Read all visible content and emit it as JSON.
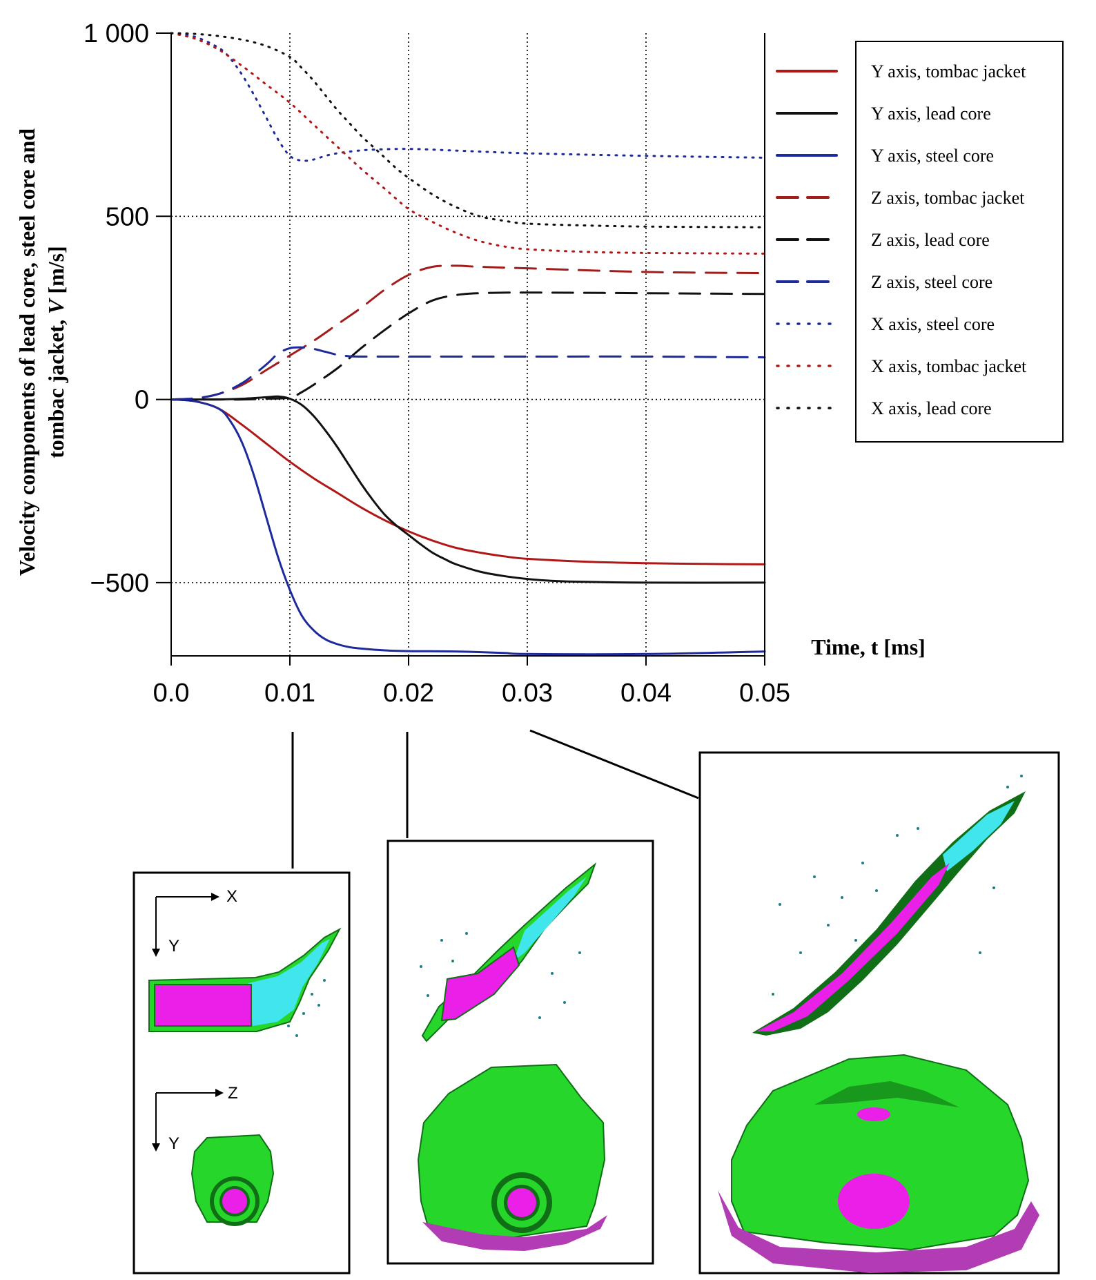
{
  "chart_data": {
    "type": "line",
    "xlabel": "Time, t [ms]",
    "ylabel_line1": "Velocity components of lead core, steel core and",
    "ylabel_line2_prefix": "tombac jacket, ",
    "ylabel_line2_var": "V",
    "ylabel_line2_unit": " [m/s]",
    "xlim": [
      0,
      0.05
    ],
    "ylim": [
      -700,
      1000
    ],
    "x_ticks": [
      0.0,
      0.01,
      0.02,
      0.03,
      0.04,
      0.05
    ],
    "x_tick_labels": [
      "0.0",
      "0.01",
      "0.02",
      "0.03",
      "0.04",
      "0.05"
    ],
    "y_ticks": [
      1000,
      500,
      0,
      -500
    ],
    "y_tick_labels": [
      "1 000",
      "500",
      "0",
      "−500"
    ],
    "series": [
      {
        "name": "Y axis, tombac jacket",
        "color": "#b01818",
        "style": "solid",
        "x": [
          0,
          0.002,
          0.004,
          0.006,
          0.008,
          0.01,
          0.012,
          0.014,
          0.016,
          0.018,
          0.02,
          0.022,
          0.024,
          0.026,
          0.028,
          0.03,
          0.035,
          0.04,
          0.045,
          0.05
        ],
        "y": [
          0,
          -5,
          -25,
          -70,
          -120,
          -170,
          -215,
          -255,
          -295,
          -330,
          -360,
          -385,
          -405,
          -418,
          -428,
          -435,
          -443,
          -447,
          -449,
          -450
        ]
      },
      {
        "name": "Y axis, lead core",
        "color": "#111111",
        "style": "solid",
        "x": [
          0,
          0.002,
          0.004,
          0.006,
          0.008,
          0.009,
          0.01,
          0.011,
          0.012,
          0.013,
          0.014,
          0.015,
          0.016,
          0.017,
          0.018,
          0.019,
          0.02,
          0.021,
          0.022,
          0.023,
          0.024,
          0.026,
          0.028,
          0.03,
          0.032,
          0.035,
          0.04,
          0.05
        ],
        "y": [
          0,
          0,
          0,
          2,
          6,
          8,
          2,
          -15,
          -45,
          -85,
          -130,
          -180,
          -230,
          -275,
          -315,
          -345,
          -370,
          -395,
          -418,
          -435,
          -450,
          -470,
          -482,
          -490,
          -495,
          -498,
          -500,
          -500
        ]
      },
      {
        "name": "Y axis, steel core",
        "color": "#1c2a9c",
        "style": "solid",
        "x": [
          0,
          0.002,
          0.004,
          0.005,
          0.006,
          0.007,
          0.008,
          0.009,
          0.01,
          0.011,
          0.012,
          0.013,
          0.014,
          0.015,
          0.016,
          0.018,
          0.02,
          0.024,
          0.028,
          0.03,
          0.04,
          0.05
        ],
        "y": [
          0,
          -5,
          -25,
          -60,
          -120,
          -210,
          -320,
          -430,
          -520,
          -590,
          -630,
          -655,
          -668,
          -676,
          -680,
          -685,
          -687,
          -688,
          -692,
          -695,
          -695,
          -688
        ]
      },
      {
        "name": "Z axis, tombac jacket",
        "color": "#a31c1c",
        "style": "dashed",
        "x": [
          0,
          0.002,
          0.004,
          0.006,
          0.008,
          0.01,
          0.012,
          0.014,
          0.016,
          0.018,
          0.02,
          0.022,
          0.024,
          0.026,
          0.03,
          0.04,
          0.05
        ],
        "y": [
          0,
          3,
          15,
          40,
          80,
          120,
          160,
          205,
          250,
          300,
          340,
          362,
          365,
          362,
          358,
          348,
          345
        ]
      },
      {
        "name": "Z axis, lead core",
        "color": "#111111",
        "style": "dashed",
        "x": [
          0,
          0.002,
          0.004,
          0.006,
          0.008,
          0.01,
          0.011,
          0.012,
          0.014,
          0.016,
          0.018,
          0.02,
          0.022,
          0.024,
          0.026,
          0.03,
          0.04,
          0.05
        ],
        "y": [
          0,
          0,
          0,
          0,
          2,
          5,
          20,
          40,
          85,
          140,
          190,
          235,
          270,
          285,
          290,
          292,
          290,
          288
        ]
      },
      {
        "name": "Z axis, steel core",
        "color": "#1c2a9c",
        "style": "dashed",
        "x": [
          0,
          0.002,
          0.004,
          0.006,
          0.008,
          0.009,
          0.01,
          0.011,
          0.012,
          0.013,
          0.014,
          0.015,
          0.016,
          0.02,
          0.03,
          0.04,
          0.05
        ],
        "y": [
          0,
          3,
          15,
          45,
          95,
          125,
          140,
          142,
          138,
          130,
          122,
          118,
          117,
          117,
          117,
          117,
          115
        ]
      },
      {
        "name": "X axis, steel core",
        "color": "#1c2a9c",
        "style": "dotted",
        "x": [
          0,
          0.002,
          0.004,
          0.005,
          0.006,
          0.007,
          0.008,
          0.009,
          0.01,
          0.011,
          0.012,
          0.013,
          0.014,
          0.016,
          0.018,
          0.02,
          0.022,
          0.025,
          0.03,
          0.04,
          0.05
        ],
        "y": [
          1000,
          990,
          960,
          930,
          885,
          830,
          770,
          710,
          665,
          652,
          655,
          665,
          672,
          680,
          683,
          684,
          682,
          678,
          672,
          665,
          660
        ]
      },
      {
        "name": "X axis, tombac jacket",
        "color": "#b01818",
        "style": "dotted",
        "x": [
          0,
          0.002,
          0.004,
          0.006,
          0.008,
          0.01,
          0.012,
          0.014,
          0.016,
          0.018,
          0.02,
          0.022,
          0.024,
          0.026,
          0.028,
          0.03,
          0.035,
          0.04,
          0.05
        ],
        "y": [
          1000,
          985,
          955,
          910,
          860,
          810,
          750,
          690,
          630,
          575,
          520,
          485,
          455,
          432,
          418,
          410,
          403,
          400,
          398
        ]
      },
      {
        "name": "X axis, lead core",
        "color": "#111111",
        "style": "dotted",
        "x": [
          0,
          0.002,
          0.004,
          0.006,
          0.008,
          0.01,
          0.011,
          0.012,
          0.013,
          0.014,
          0.015,
          0.016,
          0.017,
          0.018,
          0.019,
          0.02,
          0.022,
          0.024,
          0.026,
          0.028,
          0.03,
          0.035,
          0.04,
          0.05
        ],
        "y": [
          1000,
          998,
          992,
          982,
          965,
          935,
          905,
          870,
          830,
          790,
          755,
          720,
          690,
          660,
          630,
          605,
          560,
          525,
          500,
          488,
          480,
          475,
          472,
          470
        ]
      }
    ]
  },
  "insets": [
    {
      "time_ms": 0.01,
      "axis_top_h": "X",
      "axis_top_v": "Y",
      "axis_bottom_h": "Z",
      "axis_bottom_v": "Y"
    },
    {
      "time_ms": 0.02
    },
    {
      "time_ms": 0.03
    }
  ],
  "colors": {
    "jacket": "#27d62a",
    "jacket_dark": "#0f6e16",
    "lead": "#ea1fe8",
    "steel": "#41e6ec",
    "fragments": "#1f7f86",
    "fragments_pink": "#b13cb4",
    "grid": "#000000",
    "frame": "#000000"
  }
}
